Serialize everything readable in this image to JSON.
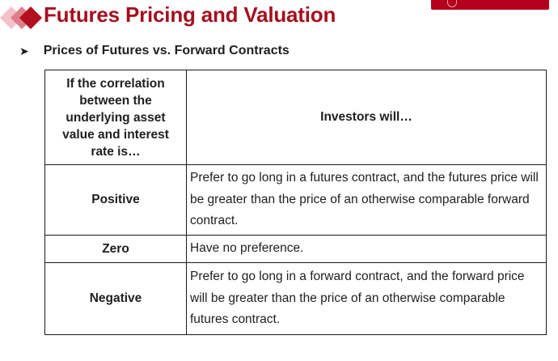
{
  "header": {
    "title": "Futures Pricing and Valuation",
    "subtitle": "Prices of Futures vs. Forward Contracts",
    "accent_color": "#a50f1e",
    "banner_color": "#b3001b"
  },
  "bullet_icon": "arrow-bullet-icon",
  "table": {
    "header_left": "If the correlation between the underlying asset value and interest rate is…",
    "header_right": "Investors will…",
    "rows": [
      {
        "label": "Positive",
        "text": "Prefer to go long in a futures contract, and the futures price will be greater than the price of an otherwise comparable forward contract."
      },
      {
        "label": "Zero",
        "text": "Have no preference."
      },
      {
        "label": "Negative",
        "text": "Prefer to go long in a forward contract, and the forward price will be greater than the price of an otherwise comparable futures contract."
      }
    ]
  }
}
